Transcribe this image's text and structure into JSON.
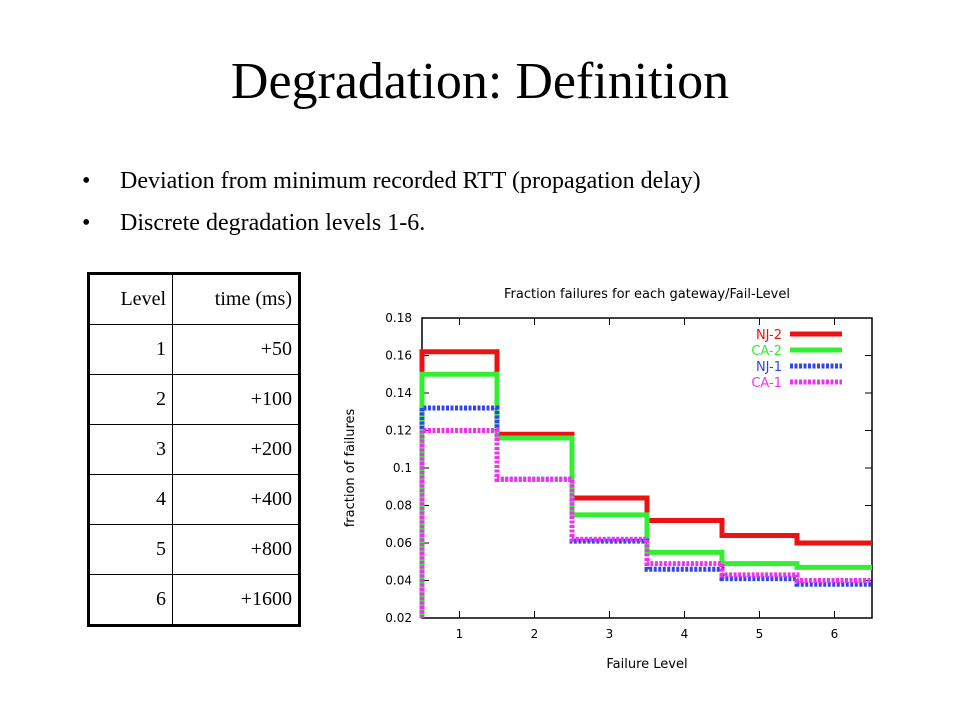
{
  "slide": {
    "title": "Degradation: Definition",
    "bullets": [
      "Deviation from minimum recorded RTT (propagation delay)",
      "Discrete degradation levels 1-6."
    ],
    "bullet_glyph": "•"
  },
  "table": {
    "headers": [
      "Level",
      "time (ms)"
    ],
    "rows": [
      [
        "1",
        "+50"
      ],
      [
        "2",
        "+100"
      ],
      [
        "3",
        "+200"
      ],
      [
        "4",
        "+400"
      ],
      [
        "5",
        "+800"
      ],
      [
        "6",
        "+1600"
      ]
    ]
  },
  "chart_data": {
    "type": "line",
    "title": "Fraction failures for each gateway/Fail-Level",
    "xlabel": "Failure Level",
    "ylabel": "fraction of failures",
    "x": [
      1,
      2,
      3,
      4,
      5,
      6
    ],
    "xlim": [
      0.5,
      6.5
    ],
    "ylim": [
      0.02,
      0.18
    ],
    "yticks": [
      0.02,
      0.04,
      0.06,
      0.08,
      0.1,
      0.12,
      0.14,
      0.16,
      0.18
    ],
    "ytick_labels": [
      "0.02",
      "0.04",
      "0.06",
      "0.08",
      "0.1",
      "0.12",
      "0.14",
      "0.16",
      "0.18"
    ],
    "xtick_labels": [
      "1",
      "2",
      "3",
      "4",
      "5",
      "6"
    ],
    "step": true,
    "grid": false,
    "legend_position": "top-right",
    "series": [
      {
        "name": "NJ-2",
        "color": "#ee1111",
        "values": [
          0.162,
          0.118,
          0.084,
          0.072,
          0.064,
          0.06
        ]
      },
      {
        "name": "CA-2",
        "color": "#33ee33",
        "values": [
          0.15,
          0.116,
          0.075,
          0.055,
          0.049,
          0.047
        ]
      },
      {
        "name": "NJ-1",
        "color": "#3344ee",
        "values": [
          0.132,
          0.094,
          0.061,
          0.046,
          0.041,
          0.038
        ]
      },
      {
        "name": "CA-1",
        "color": "#ee33ee",
        "values": [
          0.12,
          0.094,
          0.062,
          0.049,
          0.043,
          0.04
        ]
      }
    ]
  }
}
